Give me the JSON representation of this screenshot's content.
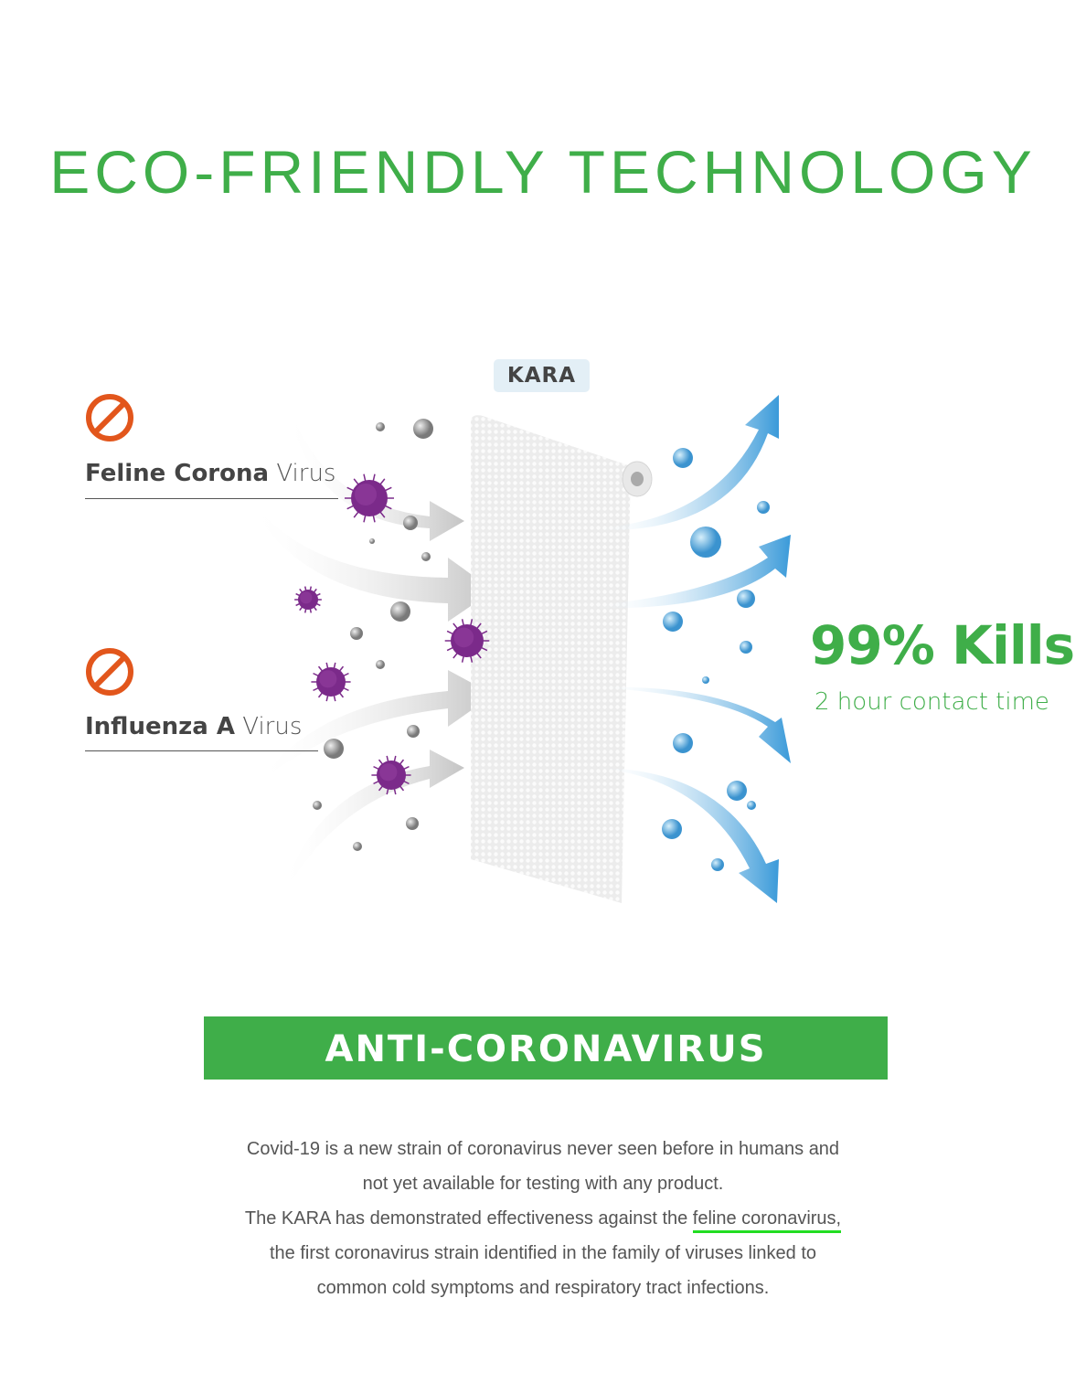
{
  "header": {
    "title": "ECO-FRIENDLY TECHNOLOGY"
  },
  "diagram": {
    "product_label": "KARA",
    "viruses": [
      {
        "name_bold": "Feline Corona",
        "name_light": "Virus",
        "icon": "ban-icon"
      },
      {
        "name_bold": "Influenza A",
        "name_light": "Virus",
        "icon": "ban-icon"
      }
    ],
    "result": {
      "headline": "99% Kills",
      "subtext": "2 hour contact time"
    },
    "colors": {
      "green": "#3fae49",
      "ban_orange": "#e2561c",
      "virus_purple": "#7b2a8a",
      "arrow_blue": "#3a9ad9"
    }
  },
  "banner": {
    "label": "ANTI-CORONAVIRUS"
  },
  "description": {
    "line1": "Covid-19 is a new strain of coronavirus never seen before in humans and",
    "line2": "not yet available for testing with any product.",
    "line3_before": "The KARA has demonstrated effectiveness against the ",
    "line3_highlight": "feline coronavirus,",
    "line4": "the first coronavirus strain identified in the family of viruses linked to",
    "line5": "common cold symptoms and respiratory tract infections."
  }
}
